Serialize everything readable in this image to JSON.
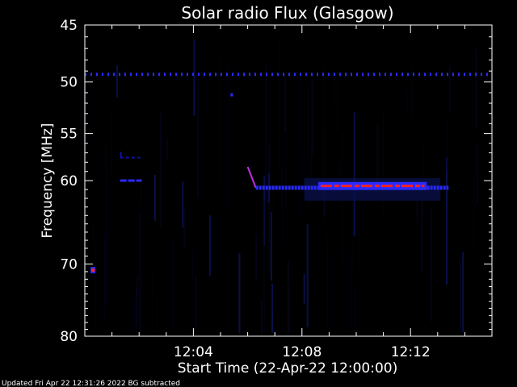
{
  "chart_data": {
    "type": "heatmap",
    "title": "Solar radio Flux (Glasgow)",
    "xlabel": "Start Time (22-Apr-22 12:00:00)",
    "ylabel": "Frequency [MHz]",
    "x_unit": "minutes after 12:00:00",
    "xlim": [
      0,
      15
    ],
    "ylim": [
      80,
      45
    ],
    "y_scale": "log (reversed)",
    "x_ticks": [
      {
        "value": 4,
        "label": "12:04"
      },
      {
        "value": 8,
        "label": "12:08"
      },
      {
        "value": 12,
        "label": "12:12"
      }
    ],
    "y_ticks": [
      {
        "value": 45,
        "label": "45"
      },
      {
        "value": 50,
        "label": "50"
      },
      {
        "value": 55,
        "label": "55"
      },
      {
        "value": 60,
        "label": "60"
      },
      {
        "value": 70,
        "label": "70"
      },
      {
        "value": 80,
        "label": "80"
      }
    ],
    "grid": false,
    "background_color": "#000000",
    "frame_color": "#ffffff",
    "colormap": [
      "#05051c",
      "#0a1250",
      "#1010a8",
      "#2a2aff",
      "#ff2020"
    ],
    "features": [
      {
        "name": "constant interference line",
        "x_start": 0,
        "x_end": 15,
        "freq": 49.3,
        "intensity": "blue dashed"
      },
      {
        "name": "isolated spot",
        "x": 5.4,
        "freq": 51.2,
        "intensity": "blue"
      },
      {
        "name": "short trace near 57 MHz",
        "x_start": 1.3,
        "x_end": 2.1,
        "freq": 57.5,
        "intensity": "dark blue"
      },
      {
        "name": "short trace near 60 MHz",
        "x_start": 1.3,
        "x_end": 2.1,
        "freq": 60.0,
        "intensity": "blue"
      },
      {
        "name": "sweep",
        "x_start": 6.0,
        "x_end": 6.3,
        "freq_start": 58.5,
        "freq_end": 60.8,
        "intensity": "magenta"
      },
      {
        "name": "main band",
        "x_start": 6.3,
        "x_end": 13.4,
        "freq": 60.8,
        "intensity": "blue"
      },
      {
        "name": "intense segment",
        "x_start": 8.6,
        "x_end": 12.6,
        "freq": 60.6,
        "intensity": "red"
      },
      {
        "name": "spot near 71 MHz",
        "x": 0.3,
        "freq": 70.8,
        "intensity": "red"
      }
    ]
  },
  "footer": "Updated Fri Apr 22 12:31:26 2022   BG subtracted"
}
